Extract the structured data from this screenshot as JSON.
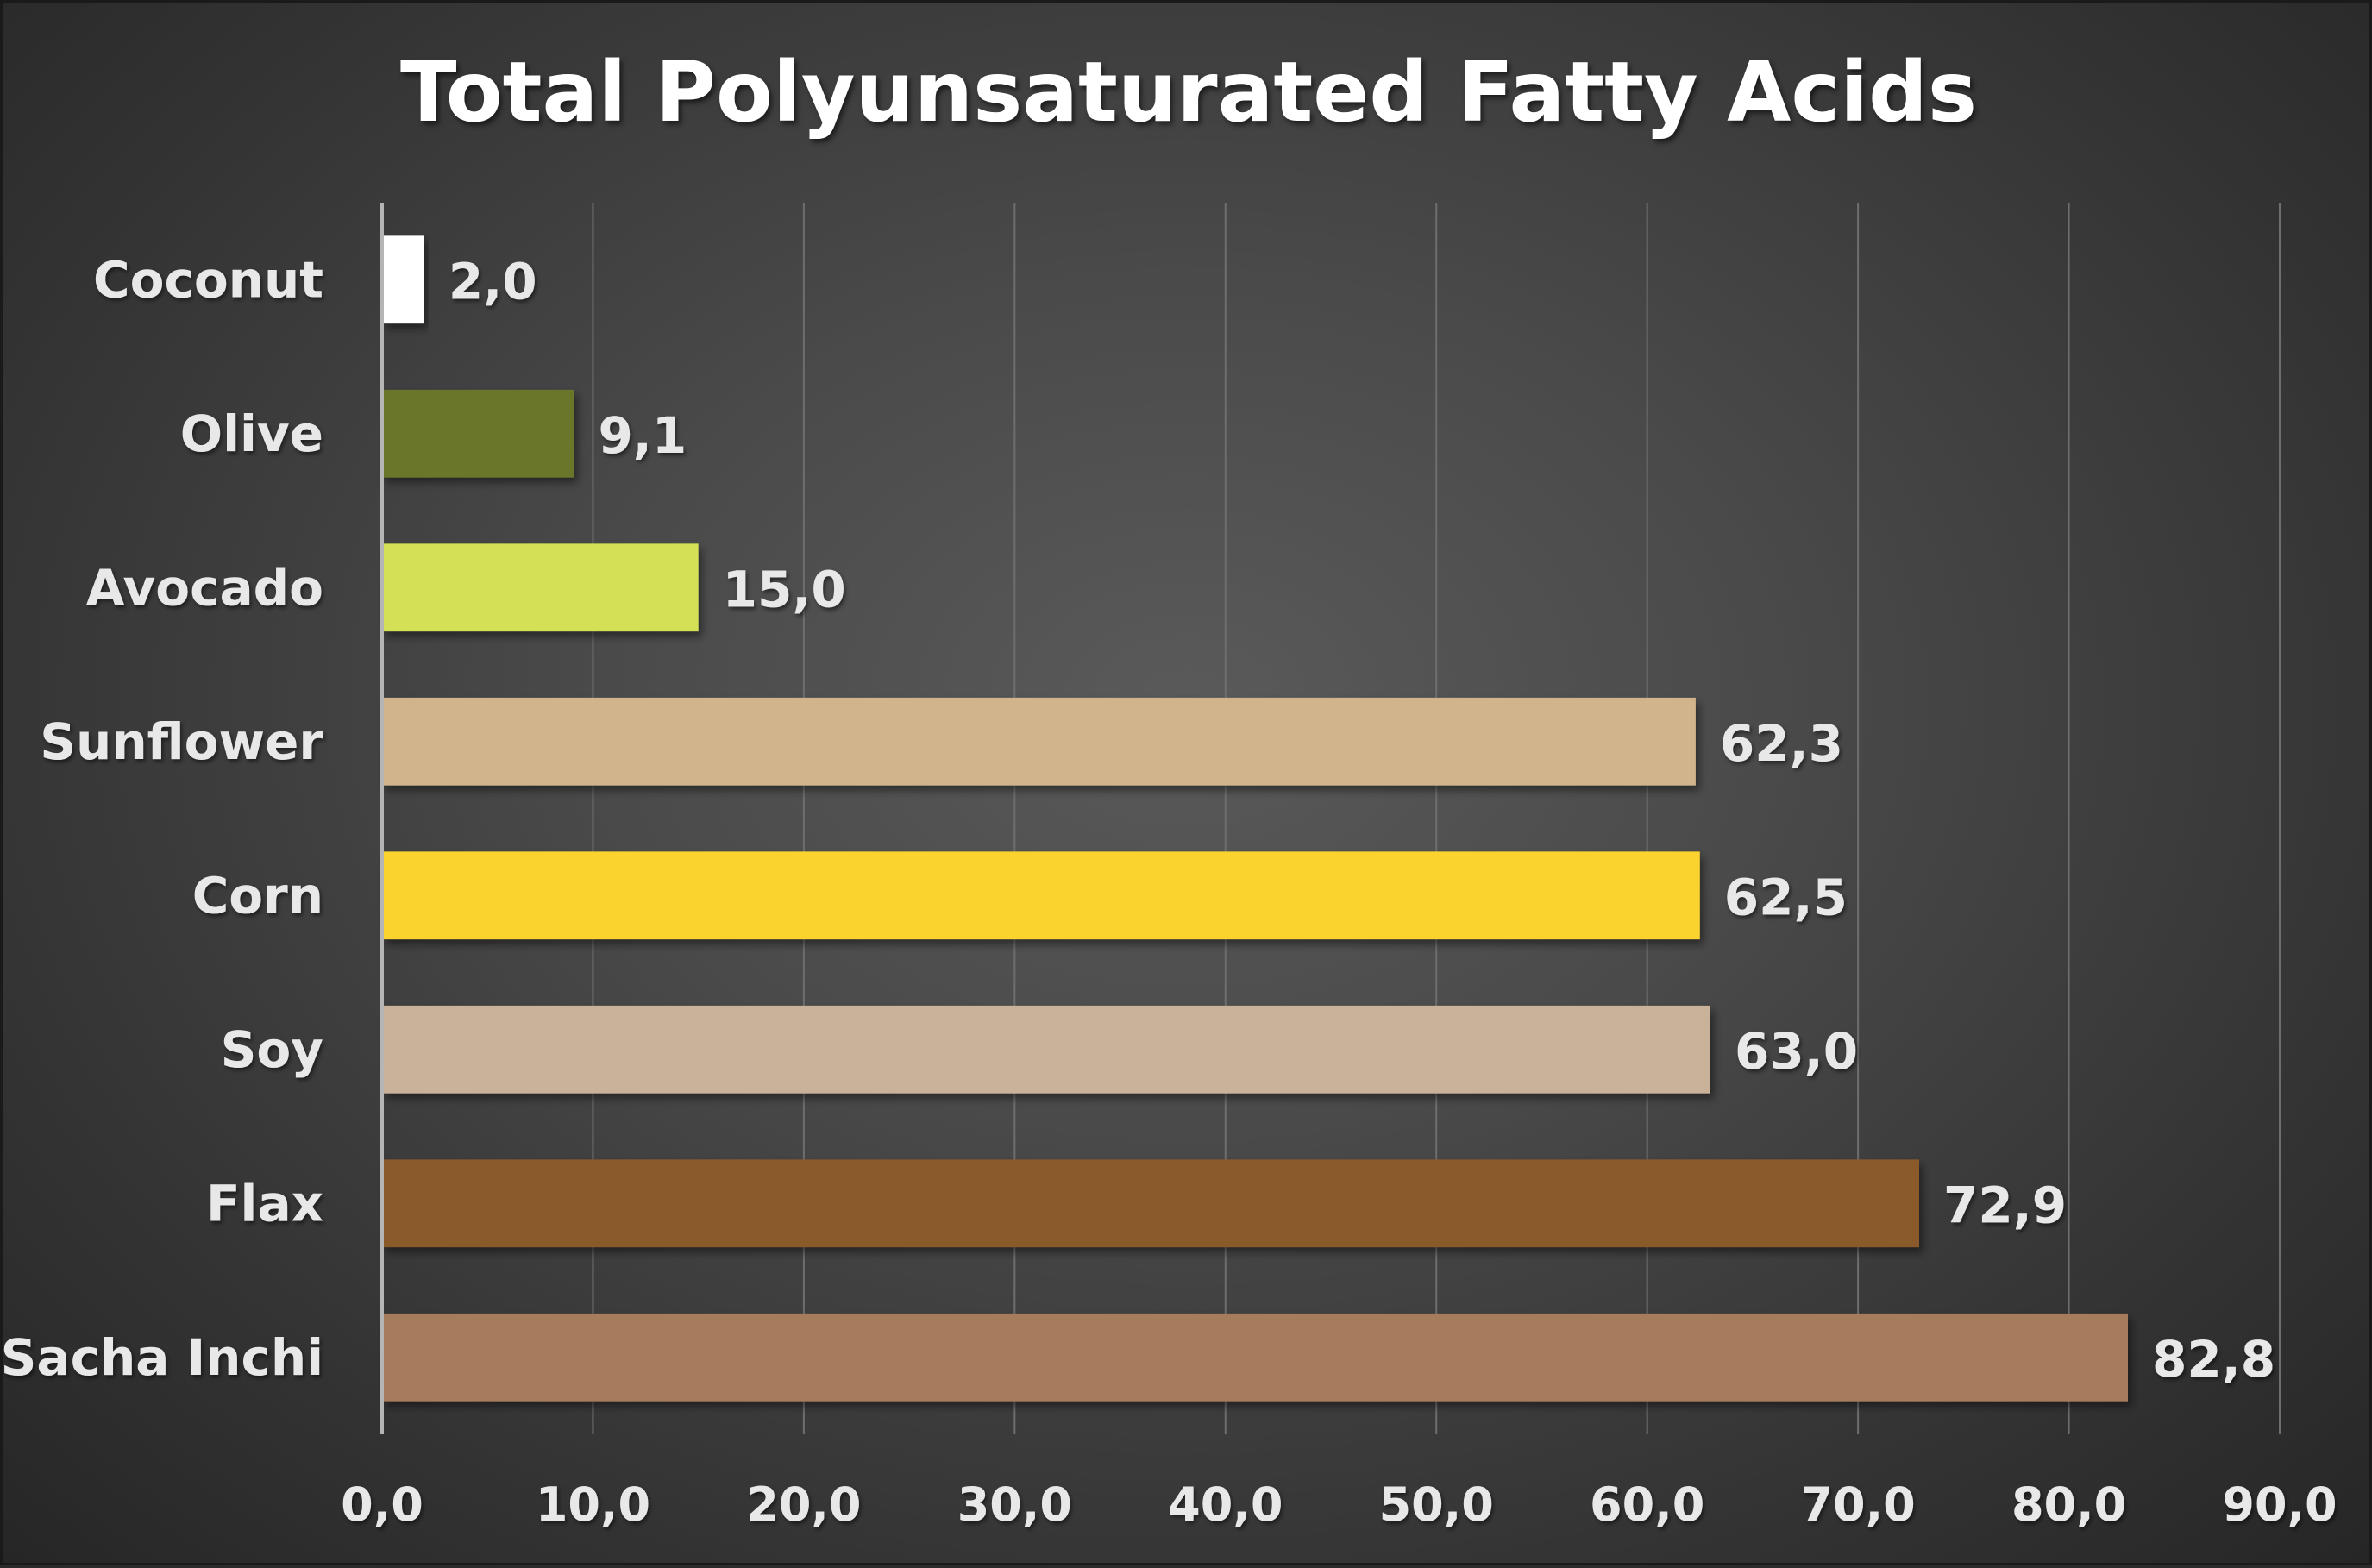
{
  "chart_data": {
    "type": "bar",
    "orientation": "horizontal",
    "title": "Total Polyunsaturated Fatty Acids",
    "categories": [
      "Coconut",
      "Olive",
      "Avocado",
      "Sunflower",
      "Corn",
      "Soy",
      "Flax",
      "Sacha Inchi"
    ],
    "values": [
      2.0,
      9.1,
      15.0,
      62.3,
      62.5,
      63.0,
      72.9,
      82.8
    ],
    "data_labels": [
      "2,0",
      "9,1",
      "15,0",
      "62,3",
      "62,5",
      "63,0",
      "72,9",
      "82,8"
    ],
    "bar_colors": [
      "#ffffff",
      "#6b772c",
      "#d4e157",
      "#d2b48c",
      "#fbd32e",
      "#c9b299",
      "#8a5a2b",
      "#a67b5b"
    ],
    "xlim": [
      0,
      90
    ],
    "x_ticks": [
      0,
      10,
      20,
      30,
      40,
      50,
      60,
      70,
      80,
      90
    ],
    "x_tick_labels": [
      "0,0",
      "10,0",
      "20,0",
      "30,0",
      "40,0",
      "50,0",
      "60,0",
      "70,0",
      "80,0",
      "90,0"
    ],
    "xlabel": "",
    "ylabel": "",
    "grid": "vertical",
    "legend": "none"
  }
}
